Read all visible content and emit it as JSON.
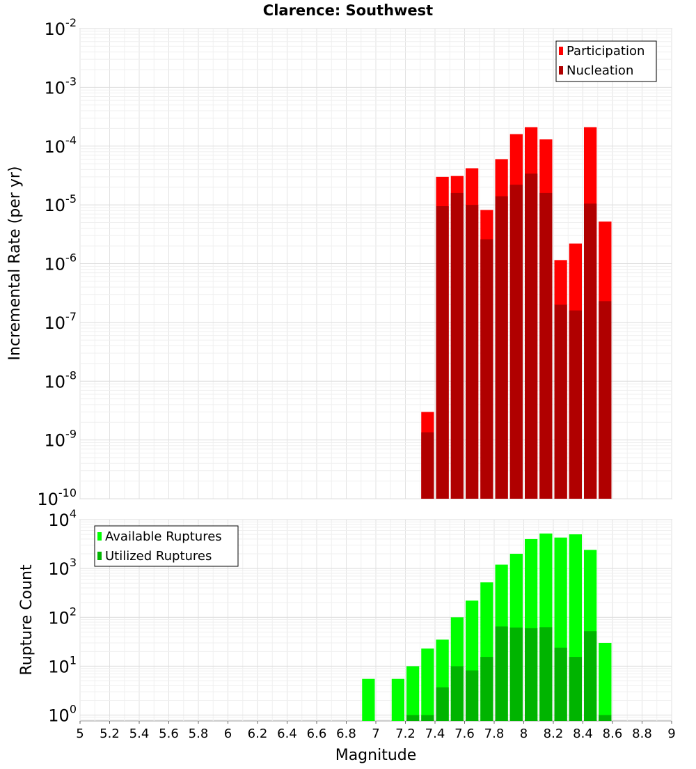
{
  "title": "Clarence: Southwest",
  "chart_data": [
    {
      "type": "bar",
      "name": "rate",
      "ylabel": "Incremental Rate (per yr)",
      "xlabel": "",
      "yscale": "log",
      "ylim_exp": [
        -10,
        -2
      ],
      "xlim": [
        5,
        9
      ],
      "bar_width": 0.1,
      "legend": {
        "position": "top-right",
        "entries": [
          "Participation",
          "Nucleation"
        ]
      },
      "series": [
        {
          "name": "Participation",
          "color": "#ff0000",
          "x": [
            7.35,
            7.45,
            7.55,
            7.65,
            7.75,
            7.85,
            7.95,
            8.05,
            8.15,
            8.25,
            8.35,
            8.45,
            8.55
          ],
          "values": [
            3e-09,
            3e-05,
            3.1e-05,
            4.2e-05,
            8.2e-06,
            6e-05,
            0.00016,
            0.00021,
            0.00013,
            1.15e-06,
            2.2e-06,
            0.00021,
            5.2e-06
          ]
        },
        {
          "name": "Nucleation",
          "color": "#b00000",
          "x": [
            7.35,
            7.45,
            7.55,
            7.65,
            7.75,
            7.85,
            7.95,
            8.05,
            8.15,
            8.25,
            8.35,
            8.45,
            8.55
          ],
          "values": [
            1.35e-09,
            9.5e-06,
            1.6e-05,
            1e-05,
            2.6e-06,
            1.4e-05,
            2.2e-05,
            3.4e-05,
            1.6e-05,
            2e-07,
            1.6e-07,
            1.05e-05,
            2.3e-07
          ]
        }
      ]
    },
    {
      "type": "bar",
      "name": "count",
      "ylabel": "Rupture Count",
      "xlabel": "Magnitude",
      "yscale": "log",
      "ylim_exp": [
        -0.12,
        4
      ],
      "tick_exps": [
        0,
        1,
        2,
        3,
        4
      ],
      "xlim": [
        5,
        9
      ],
      "bar_width": 0.1,
      "x_ticks": [
        "5",
        "5.2",
        "5.4",
        "5.6",
        "5.8",
        "6",
        "6.2",
        "6.4",
        "6.6",
        "6.8",
        "7",
        "7.2",
        "7.4",
        "7.6",
        "7.8",
        "8",
        "8.2",
        "8.4",
        "8.6",
        "8.8",
        "9"
      ],
      "legend": {
        "position": "top-left",
        "entries": [
          "Available Ruptures",
          "Utilized Ruptures"
        ]
      },
      "series": [
        {
          "name": "Available Ruptures",
          "color": "#00ff00",
          "x": [
            6.95,
            7.15,
            7.25,
            7.35,
            7.45,
            7.55,
            7.65,
            7.75,
            7.85,
            7.95,
            8.05,
            8.15,
            8.25,
            8.35,
            8.45,
            8.55
          ],
          "values": [
            5.5,
            5.5,
            10,
            23,
            35,
            100,
            220,
            520,
            1200,
            2000,
            4000,
            5200,
            4300,
            5000,
            2400,
            30
          ]
        },
        {
          "name": "Utilized Ruptures",
          "color": "#00b400",
          "x": [
            7.25,
            7.35,
            7.45,
            7.55,
            7.65,
            7.75,
            7.85,
            7.95,
            8.05,
            8.15,
            8.25,
            8.35,
            8.45,
            8.55
          ],
          "values": [
            1,
            1,
            3.7,
            10,
            8.2,
            15.5,
            65,
            62,
            60,
            63,
            24,
            15.5,
            52,
            1
          ]
        }
      ]
    }
  ]
}
